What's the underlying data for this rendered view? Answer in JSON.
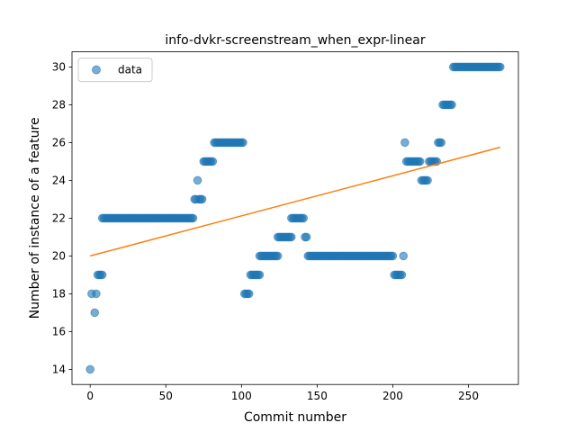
{
  "chart_data": {
    "type": "scatter",
    "title": "info-dvkr-screenstream_when_expr-linear",
    "xlabel": "Commit number",
    "ylabel": "Number of instance of a feature",
    "xlim": [
      -12,
      283
    ],
    "ylim": [
      13.2,
      30.8
    ],
    "xticks": [
      0,
      50,
      100,
      150,
      200,
      250
    ],
    "yticks": [
      14,
      16,
      18,
      20,
      22,
      24,
      26,
      28,
      30
    ],
    "legend": {
      "placement": "top-left",
      "entries": [
        "data"
      ]
    },
    "grid": false,
    "colors": {
      "points": "#1f77b4",
      "fit_line": "#ff7f0e"
    },
    "series": [
      {
        "name": "data",
        "kind": "scatter",
        "runs": [
          {
            "x_start": 0,
            "x_end": 0,
            "y": 14
          },
          {
            "x_start": 1,
            "x_end": 1,
            "y": 18
          },
          {
            "x_start": 3,
            "x_end": 3,
            "y": 17
          },
          {
            "x_start": 4,
            "x_end": 4,
            "y": 18
          },
          {
            "x_start": 5,
            "x_end": 8,
            "y": 19
          },
          {
            "x_start": 8,
            "x_end": 68,
            "y": 22
          },
          {
            "x_start": 69,
            "x_end": 70,
            "y": 23
          },
          {
            "x_start": 71,
            "x_end": 71,
            "y": 24
          },
          {
            "x_start": 72,
            "x_end": 74,
            "y": 23
          },
          {
            "x_start": 75,
            "x_end": 81,
            "y": 25
          },
          {
            "x_start": 82,
            "x_end": 101,
            "y": 26
          },
          {
            "x_start": 102,
            "x_end": 105,
            "y": 18
          },
          {
            "x_start": 106,
            "x_end": 112,
            "y": 19
          },
          {
            "x_start": 112,
            "x_end": 124,
            "y": 20
          },
          {
            "x_start": 124,
            "x_end": 133,
            "y": 21
          },
          {
            "x_start": 133,
            "x_end": 141,
            "y": 22
          },
          {
            "x_start": 142,
            "x_end": 143,
            "y": 21
          },
          {
            "x_start": 144,
            "x_end": 200,
            "y": 20
          },
          {
            "x_start": 201,
            "x_end": 206,
            "y": 19
          },
          {
            "x_start": 207,
            "x_end": 207,
            "y": 20
          },
          {
            "x_start": 208,
            "x_end": 208,
            "y": 26
          },
          {
            "x_start": 209,
            "x_end": 218,
            "y": 25
          },
          {
            "x_start": 219,
            "x_end": 223,
            "y": 24
          },
          {
            "x_start": 224,
            "x_end": 229,
            "y": 25
          },
          {
            "x_start": 230,
            "x_end": 232,
            "y": 26
          },
          {
            "x_start": 233,
            "x_end": 239,
            "y": 28
          },
          {
            "x_start": 240,
            "x_end": 271,
            "y": 30
          }
        ]
      },
      {
        "name": "",
        "kind": "line",
        "x": [
          0,
          271
        ],
        "y": [
          20.0,
          25.75
        ]
      }
    ]
  }
}
